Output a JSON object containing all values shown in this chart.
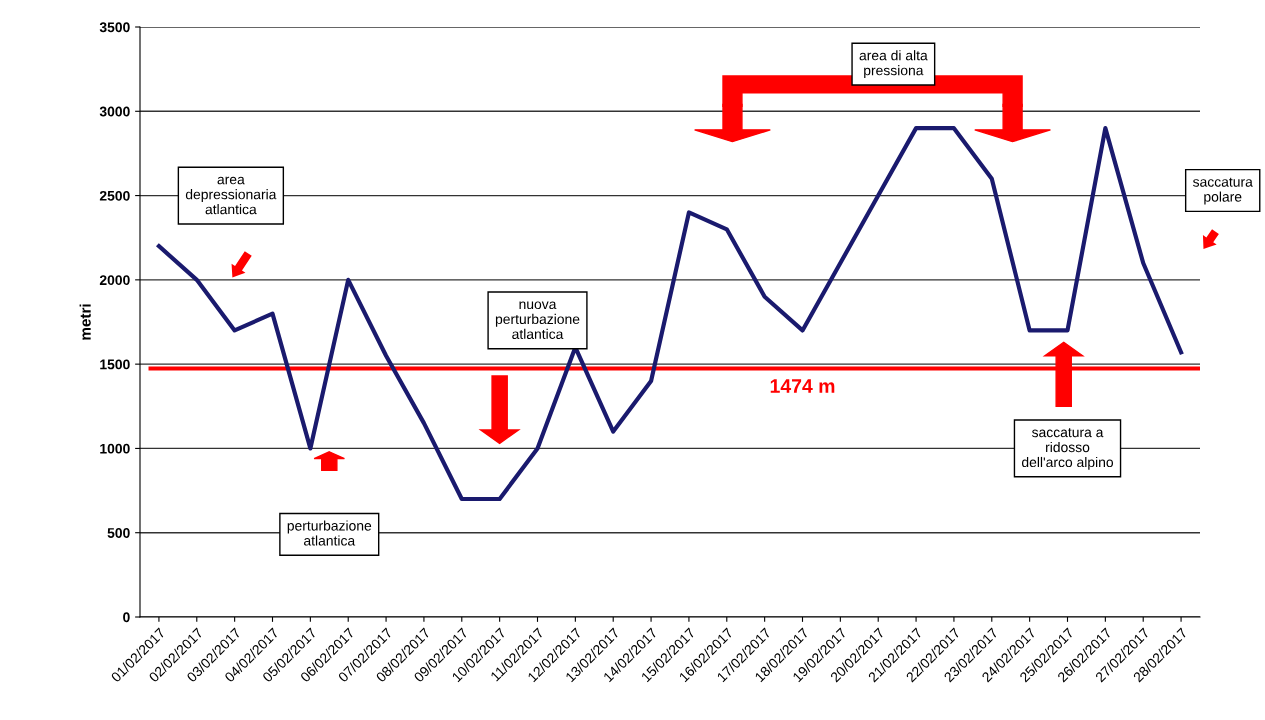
{
  "chart_data": {
    "type": "line",
    "ylabel": "metri",
    "categories": [
      "01/02/2017",
      "02/02/2017",
      "03/02/2017",
      "04/02/2017",
      "05/02/2017",
      "06/02/2017",
      "07/02/2017",
      "08/02/2017",
      "09/02/2017",
      "10/02/2017",
      "11/02/2017",
      "12/02/2017",
      "13/02/2017",
      "14/02/2017",
      "15/02/2017",
      "16/02/2017",
      "17/02/2017",
      "18/02/2017",
      "19/02/2017",
      "20/02/2017",
      "21/02/2017",
      "22/02/2017",
      "23/02/2017",
      "24/02/2017",
      "25/02/2017",
      "26/02/2017",
      "27/02/2017",
      "28/02/2017"
    ],
    "series": [
      {
        "color": "#1a1a6e",
        "values": [
          2200,
          2000,
          1700,
          1800,
          1000,
          2000,
          1550,
          1150,
          700,
          700,
          1000,
          1600,
          1100,
          1400,
          2400,
          2300,
          1900,
          1700,
          2100,
          2500,
          2900,
          2900,
          2600,
          1700,
          1700,
          2900,
          2100,
          1570
        ]
      }
    ],
    "ylim": [
      0,
      3500
    ],
    "yticks": [
      0,
      500,
      1000,
      1500,
      2000,
      2500,
      3000,
      3500
    ],
    "grid": "y",
    "marker": "none",
    "line_style": "solid",
    "ref_lines": [
      {
        "axis": "y",
        "value": 1474,
        "label": "1474 m",
        "color": "#ff0000"
      }
    ],
    "annotations": [
      "area\ndepressionaria\natlantica",
      "perturbazione\natlantica",
      "nuova\nperturbazione\natlantica",
      "area di alta\npressiona",
      "saccatura a\nridosso\ndell'arco alpino",
      "saccatura\npolare"
    ]
  }
}
